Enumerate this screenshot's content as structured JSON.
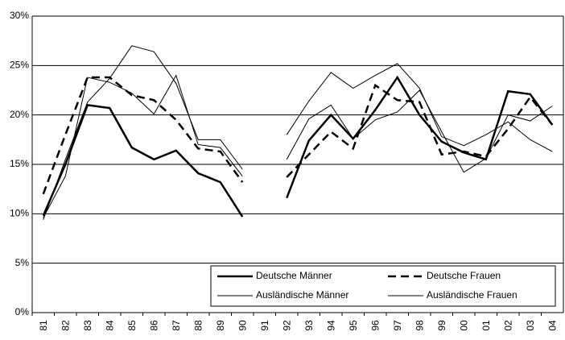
{
  "chart_data": {
    "type": "line",
    "categories": [
      "81",
      "82",
      "83",
      "84",
      "85",
      "86",
      "87",
      "88",
      "89",
      "90",
      "91",
      "92",
      "93",
      "94",
      "95",
      "96",
      "97",
      "98",
      "99",
      "00",
      "01",
      "02",
      "03",
      "04"
    ],
    "series": [
      {
        "name": "Deutsche Männer",
        "color": "#000000",
        "width": 2.5,
        "dashed": false,
        "values": [
          9.8,
          15,
          21,
          20.7,
          16.7,
          15.5,
          16.4,
          14.1,
          13.2,
          9.7,
          null,
          11.6,
          17.4,
          20,
          17.6,
          20.5,
          23.8,
          20,
          17.3,
          16.2,
          15.5,
          22.4,
          22.1,
          19
        ]
      },
      {
        "name": "Deutsche Frauen",
        "color": "#000000",
        "width": 2.5,
        "dashed": true,
        "values": [
          12,
          18,
          23.8,
          23.8,
          22,
          21.5,
          19.5,
          16.6,
          16.3,
          13.2,
          null,
          13.7,
          16,
          18.3,
          16.6,
          23,
          21.5,
          21.3,
          16,
          16.3,
          15.8,
          18.6,
          21.8,
          19
        ]
      },
      {
        "name": "Ausländische Männer",
        "color": "#000000",
        "width": 1,
        "dashed": false,
        "values": [
          9.4,
          15.5,
          21.3,
          23.7,
          27,
          26.4,
          23.2,
          17.5,
          17.5,
          14.5,
          null,
          18,
          21.4,
          24.3,
          22.7,
          24,
          25.2,
          22.7,
          17.8,
          16.9,
          18,
          19.3,
          17.5,
          16.3
        ]
      },
      {
        "name": "Ausländische Frauen",
        "color": "#000000",
        "width": 1,
        "dashed": false,
        "values": [
          9.6,
          13.8,
          23.8,
          23.3,
          22.2,
          20.1,
          24,
          17,
          16.7,
          13.8,
          null,
          15.5,
          19.6,
          21,
          17.6,
          19.5,
          20.3,
          22.5,
          18.3,
          14.2,
          15.6,
          20,
          19.4,
          20.9
        ]
      }
    ],
    "ylim": [
      0,
      30
    ],
    "yticks": [
      {
        "value": 0,
        "label": "0%"
      },
      {
        "value": 5,
        "label": "5%"
      },
      {
        "value": 10,
        "label": "10%"
      },
      {
        "value": 15,
        "label": "15%"
      },
      {
        "value": 20,
        "label": "20%"
      },
      {
        "value": 25,
        "label": "25%"
      },
      {
        "value": 30,
        "label": "30%"
      }
    ],
    "grid": true,
    "legend": "lower right"
  }
}
